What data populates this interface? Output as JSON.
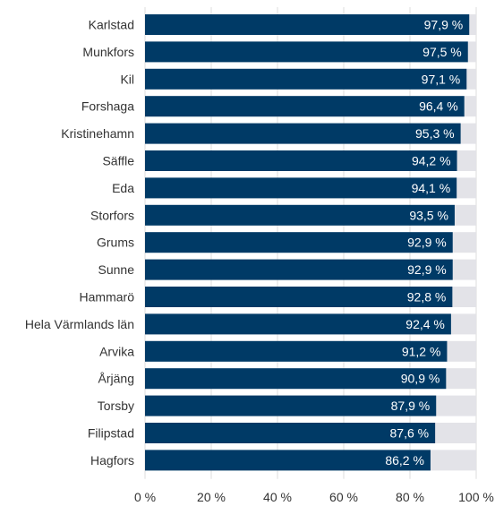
{
  "chart_data": {
    "type": "bar",
    "orientation": "horizontal",
    "title": "",
    "xlabel": "",
    "ylabel": "",
    "xlim": [
      0,
      100
    ],
    "categories": [
      "Karlstad",
      "Munkfors",
      "Kil",
      "Forshaga",
      "Kristinehamn",
      "Säffle",
      "Eda",
      "Storfors",
      "Grums",
      "Sunne",
      "Hammarö",
      "Hela Värmlands län",
      "Arvika",
      "Årjäng",
      "Torsby",
      "Filipstad",
      "Hagfors"
    ],
    "values": [
      97.9,
      97.5,
      97.1,
      96.4,
      95.3,
      94.2,
      94.1,
      93.5,
      92.9,
      92.9,
      92.8,
      92.4,
      91.2,
      90.9,
      87.9,
      87.6,
      86.2
    ],
    "value_labels": [
      "97,9 %",
      "97,5 %",
      "97,1 %",
      "96,4 %",
      "95,3 %",
      "94,2 %",
      "94,1 %",
      "93,5 %",
      "92,9 %",
      "92,9 %",
      "92,8 %",
      "92,4 %",
      "91,2 %",
      "90,9 %",
      "87,9 %",
      "87,6 %",
      "86,2 %"
    ],
    "x_ticks": [
      0,
      20,
      40,
      60,
      80,
      100
    ],
    "x_tick_labels": [
      "0 %",
      "20 %",
      "40 %",
      "60 %",
      "80 %",
      "100 %"
    ],
    "bar_color": "#003a66",
    "background_bar_color": "#e3e3e8",
    "gridlines": true,
    "legend": false
  }
}
